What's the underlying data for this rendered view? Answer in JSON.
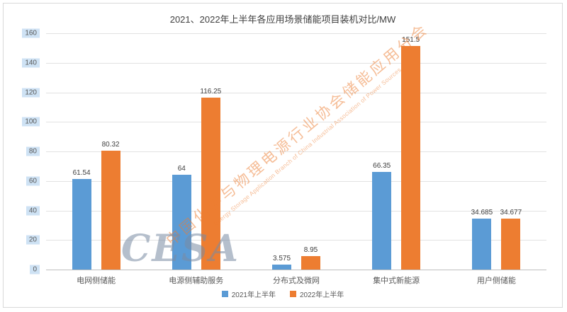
{
  "chart_data": {
    "type": "bar",
    "title": "2021、2022年上半年各应用场景储能项目装机对比/MW",
    "categories": [
      "电网侧储能",
      "电源侧辅助服务",
      "分布式及微网",
      "集中式新能源",
      "用户侧储能"
    ],
    "series": [
      {
        "name": "2021年上半年",
        "color": "#5B9BD5",
        "values": [
          61.54,
          64,
          3.575,
          66.35,
          34.685
        ]
      },
      {
        "name": "2022年上半年",
        "color": "#ED7D31",
        "values": [
          80.32,
          116.25,
          8.95,
          151.5,
          34.677
        ]
      }
    ],
    "ylim": [
      0,
      160
    ],
    "yticks": [
      0,
      20,
      40,
      60,
      80,
      100,
      120,
      140,
      160
    ],
    "grid": true,
    "legend_position": "bottom"
  },
  "watermark": {
    "cesa": "CESA",
    "line1": "中国化学与物理电源行业协会储能应用分会",
    "line2": "Energy Storage Application Branch of China Industrial Association of Power Sources"
  }
}
